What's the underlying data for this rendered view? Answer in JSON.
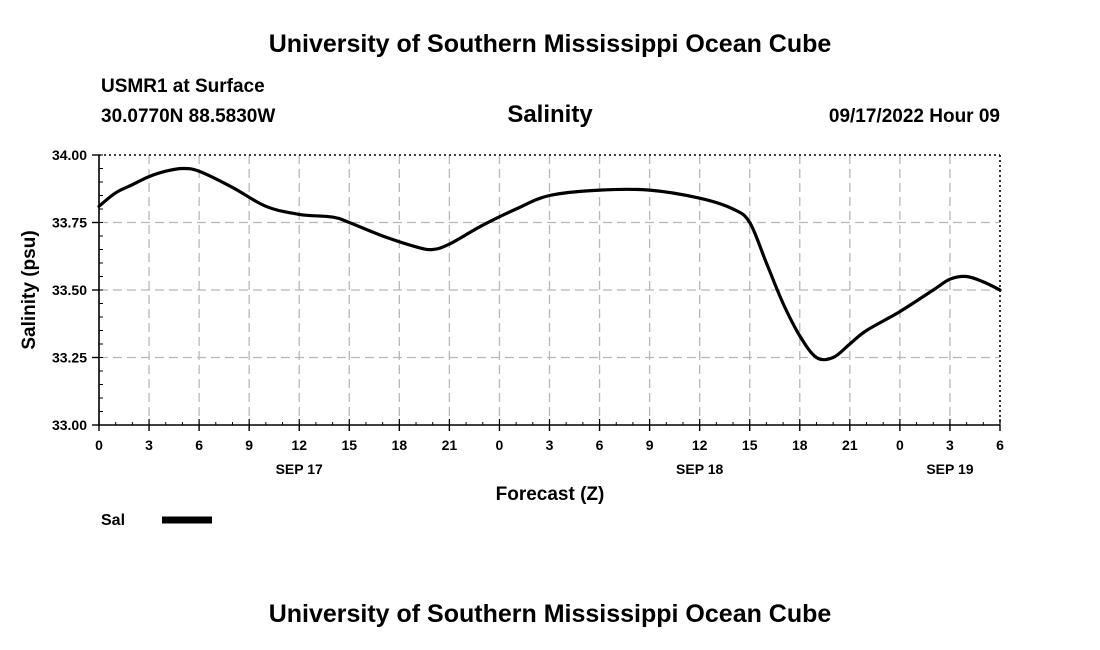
{
  "header": {
    "title": "University of Southern Mississippi Ocean Cube",
    "station": "USMR1 at Surface",
    "coords": "30.0770N  88.5830W",
    "variable": "Salinity",
    "datetime": "09/17/2022 Hour 09"
  },
  "footer": {
    "title": "University of Southern Mississippi Ocean Cube"
  },
  "legend": {
    "label": "Sal"
  },
  "chart_data": {
    "type": "line",
    "title": "Salinity",
    "xlabel": "Forecast (Z)",
    "ylabel": "Salinity (psu)",
    "xlim": [
      0,
      54
    ],
    "ylim": [
      33.0,
      34.0
    ],
    "y_ticks": [
      "33.00",
      "33.25",
      "33.50",
      "33.75",
      "34.00"
    ],
    "x_tick_labels": [
      "0",
      "3",
      "6",
      "9",
      "12",
      "15",
      "18",
      "21",
      "0",
      "3",
      "6",
      "9",
      "12",
      "15",
      "18",
      "21",
      "0",
      "3",
      "6"
    ],
    "date_labels": [
      {
        "label": "SEP 17",
        "x": 12
      },
      {
        "label": "SEP 18",
        "x": 36
      },
      {
        "label": "SEP 19",
        "x": 51
      }
    ],
    "grid": true,
    "series": [
      {
        "name": "Sal",
        "color": "#000000",
        "x": [
          0,
          1,
          2,
          3,
          4,
          5,
          6,
          8,
          10,
          12,
          14,
          15,
          17,
          19,
          20,
          21,
          23,
          25,
          27,
          30,
          33,
          36,
          38,
          39,
          40,
          41,
          42,
          43,
          44,
          45,
          46,
          48,
          50,
          51,
          52,
          53,
          54
        ],
        "y": [
          33.81,
          33.86,
          33.89,
          33.92,
          33.94,
          33.95,
          33.94,
          33.88,
          33.81,
          33.78,
          33.77,
          33.75,
          33.7,
          33.66,
          33.65,
          33.67,
          33.74,
          33.8,
          33.85,
          33.87,
          33.87,
          33.84,
          33.8,
          33.75,
          33.6,
          33.45,
          33.33,
          33.25,
          33.25,
          33.3,
          33.35,
          33.42,
          33.5,
          33.54,
          33.55,
          33.53,
          33.5
        ]
      }
    ]
  }
}
